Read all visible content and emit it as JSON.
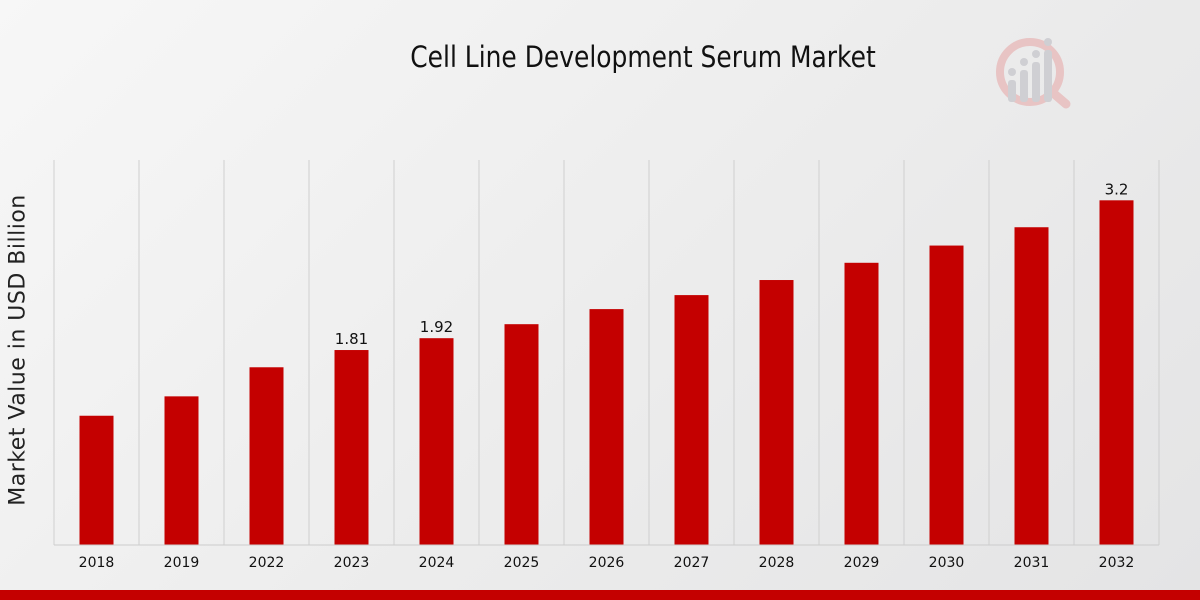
{
  "chart_data": {
    "type": "bar",
    "title": "Cell Line Development Serum Market",
    "xlabel": "",
    "ylabel": "Market Value in USD Billion",
    "categories": [
      "2018",
      "2019",
      "2022",
      "2023",
      "2024",
      "2025",
      "2026",
      "2027",
      "2028",
      "2029",
      "2030",
      "2031",
      "2032"
    ],
    "values": [
      1.2,
      1.38,
      1.65,
      1.81,
      1.92,
      2.05,
      2.19,
      2.32,
      2.46,
      2.62,
      2.78,
      2.95,
      3.2
    ],
    "data_labels": [
      "",
      "",
      "",
      "1.81",
      "1.92",
      "",
      "",
      "",
      "",
      "",
      "",
      "",
      "3.2"
    ],
    "ylim": [
      0,
      3.5
    ],
    "grid": "vertical",
    "bar_color": "#c40000"
  },
  "colors": {
    "accent": "#c40000"
  }
}
